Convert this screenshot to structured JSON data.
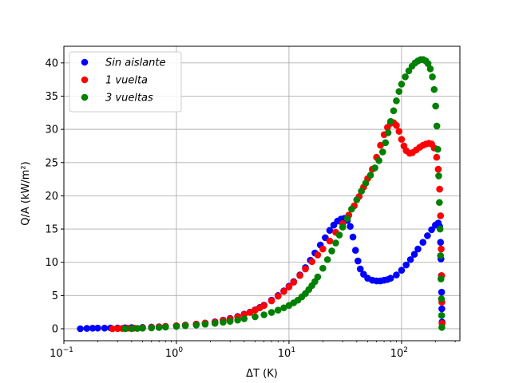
{
  "chart_data": {
    "type": "scatter",
    "title": "",
    "xlabel": "ΔT (K)",
    "ylabel": "Q/A (kW/m²)",
    "xscale": "log",
    "xlim": [
      0.1,
      330
    ],
    "ylim": [
      -1.8,
      42.5
    ],
    "xticks": [
      {
        "value": 0.1,
        "label": "10",
        "exp": "−1"
      },
      {
        "value": 1,
        "label": "10",
        "exp": "0"
      },
      {
        "value": 10,
        "label": "10",
        "exp": "1"
      },
      {
        "value": 100,
        "label": "10",
        "exp": "2"
      }
    ],
    "yticks": [
      0,
      5,
      10,
      15,
      20,
      25,
      30,
      35,
      40
    ],
    "grid": true,
    "legend_position": "top-left",
    "series": [
      {
        "name": "Sin aislante",
        "color": "#0000ff",
        "points": [
          [
            0.14,
            0.0
          ],
          [
            0.16,
            0.05
          ],
          [
            0.18,
            0.08
          ],
          [
            0.2,
            0.1
          ],
          [
            0.23,
            0.1
          ],
          [
            0.26,
            0.12
          ],
          [
            0.3,
            0.12
          ],
          [
            0.35,
            0.15
          ],
          [
            0.4,
            0.18
          ],
          [
            0.5,
            0.2
          ],
          [
            0.6,
            0.25
          ],
          [
            0.7,
            0.3
          ],
          [
            0.8,
            0.35
          ],
          [
            1.0,
            0.45
          ],
          [
            1.2,
            0.55
          ],
          [
            1.5,
            0.7
          ],
          [
            1.8,
            0.85
          ],
          [
            2.2,
            1.05
          ],
          [
            2.6,
            1.3
          ],
          [
            3.0,
            1.55
          ],
          [
            3.5,
            1.85
          ],
          [
            4.0,
            2.2
          ],
          [
            4.5,
            2.5
          ],
          [
            5.0,
            2.85
          ],
          [
            5.5,
            3.2
          ],
          [
            6.0,
            3.55
          ],
          [
            7.0,
            4.3
          ],
          [
            8.0,
            5.0
          ],
          [
            9.0,
            5.7
          ],
          [
            10.0,
            6.4
          ],
          [
            11.0,
            7.1
          ],
          [
            12.5,
            8.1
          ],
          [
            14.0,
            9.2
          ],
          [
            15.5,
            10.3
          ],
          [
            17.0,
            11.4
          ],
          [
            19.0,
            12.6
          ],
          [
            21.0,
            13.7
          ],
          [
            23.0,
            14.8
          ],
          [
            25.0,
            15.6
          ],
          [
            27.0,
            16.2
          ],
          [
            29.0,
            16.5
          ],
          [
            31.0,
            16.6
          ],
          [
            33.0,
            16.3
          ],
          [
            35.0,
            15.4
          ],
          [
            37.0,
            13.8
          ],
          [
            39.0,
            11.8
          ],
          [
            41.0,
            10.2
          ],
          [
            43.0,
            9.0
          ],
          [
            46.0,
            8.2
          ],
          [
            50.0,
            7.6
          ],
          [
            55.0,
            7.3
          ],
          [
            60.0,
            7.2
          ],
          [
            65.0,
            7.2
          ],
          [
            70.0,
            7.3
          ],
          [
            75.0,
            7.4
          ],
          [
            80.0,
            7.6
          ],
          [
            90.0,
            8.1
          ],
          [
            100.0,
            8.8
          ],
          [
            110.0,
            9.6
          ],
          [
            120.0,
            10.4
          ],
          [
            130.0,
            11.2
          ],
          [
            140.0,
            12.0
          ],
          [
            155.0,
            13.0
          ],
          [
            170.0,
            14.0
          ],
          [
            185.0,
            14.9
          ],
          [
            200.0,
            15.6
          ],
          [
            212.0,
            15.9
          ],
          [
            218.0,
            15.4
          ],
          [
            222.0,
            13.0
          ],
          [
            224.0,
            10.5
          ],
          [
            226.0,
            8.0
          ],
          [
            227.0,
            5.5
          ],
          [
            228.0,
            3.0
          ],
          [
            229.0,
            1.0
          ]
        ]
      },
      {
        "name": "1 vuelta",
        "color": "#ff0000",
        "points": [
          [
            0.27,
            0.0
          ],
          [
            0.3,
            0.02
          ],
          [
            0.33,
            0.05
          ],
          [
            0.37,
            0.08
          ],
          [
            0.42,
            0.1
          ],
          [
            0.5,
            0.15
          ],
          [
            0.6,
            0.2
          ],
          [
            0.7,
            0.28
          ],
          [
            0.8,
            0.35
          ],
          [
            1.0,
            0.45
          ],
          [
            1.2,
            0.55
          ],
          [
            1.5,
            0.7
          ],
          [
            1.8,
            0.85
          ],
          [
            2.2,
            1.0
          ],
          [
            2.6,
            1.25
          ],
          [
            3.0,
            1.5
          ],
          [
            3.5,
            1.8
          ],
          [
            4.0,
            2.15
          ],
          [
            4.5,
            2.45
          ],
          [
            5.0,
            2.8
          ],
          [
            5.5,
            3.15
          ],
          [
            6.0,
            3.5
          ],
          [
            7.0,
            4.2
          ],
          [
            8.0,
            4.9
          ],
          [
            9.0,
            5.6
          ],
          [
            10.0,
            6.3
          ],
          [
            11.0,
            7.0
          ],
          [
            12.5,
            8.0
          ],
          [
            14.0,
            9.0
          ],
          [
            16.0,
            10.1
          ],
          [
            18.0,
            11.1
          ],
          [
            20.0,
            12.0
          ],
          [
            23.0,
            13.2
          ],
          [
            26.0,
            14.5
          ],
          [
            30.0,
            15.8
          ],
          [
            34.0,
            17.1
          ],
          [
            38.0,
            18.5
          ],
          [
            42.0,
            19.9
          ],
          [
            46.0,
            21.3
          ],
          [
            50.0,
            22.6
          ],
          [
            55.0,
            24.0
          ],
          [
            60.0,
            25.8
          ],
          [
            65.0,
            27.6
          ],
          [
            70.0,
            29.2
          ],
          [
            75.0,
            30.3
          ],
          [
            80.0,
            30.9
          ],
          [
            85.0,
            31.0
          ],
          [
            90.0,
            30.6
          ],
          [
            95.0,
            29.7
          ],
          [
            100.0,
            28.5
          ],
          [
            105.0,
            27.5
          ],
          [
            110.0,
            26.8
          ],
          [
            118.0,
            26.4
          ],
          [
            125.0,
            26.5
          ],
          [
            135.0,
            26.9
          ],
          [
            145.0,
            27.3
          ],
          [
            155.0,
            27.6
          ],
          [
            165.0,
            27.8
          ],
          [
            175.0,
            27.9
          ],
          [
            185.0,
            27.8
          ],
          [
            195.0,
            27.2
          ],
          [
            205.0,
            25.8
          ],
          [
            212.0,
            24.0
          ],
          [
            218.0,
            21.0
          ],
          [
            222.0,
            17.0
          ],
          [
            225.0,
            12.0
          ],
          [
            227.0,
            8.0
          ],
          [
            228.0,
            4.0
          ],
          [
            229.0,
            0.8
          ]
        ]
      },
      {
        "name": "3 vueltas",
        "color": "#008000",
        "points": [
          [
            0.35,
            0.0
          ],
          [
            0.4,
            0.02
          ],
          [
            0.45,
            0.05
          ],
          [
            0.5,
            0.08
          ],
          [
            0.6,
            0.12
          ],
          [
            0.7,
            0.18
          ],
          [
            0.8,
            0.24
          ],
          [
            1.0,
            0.35
          ],
          [
            1.2,
            0.45
          ],
          [
            1.5,
            0.55
          ],
          [
            1.8,
            0.68
          ],
          [
            2.2,
            0.82
          ],
          [
            2.6,
            0.98
          ],
          [
            3.0,
            1.12
          ],
          [
            3.5,
            1.3
          ],
          [
            4.0,
            1.5
          ],
          [
            5.0,
            1.8
          ],
          [
            6.0,
            2.1
          ],
          [
            7.0,
            2.45
          ],
          [
            8.0,
            2.8
          ],
          [
            9.0,
            3.15
          ],
          [
            10.0,
            3.5
          ],
          [
            11.0,
            3.9
          ],
          [
            12.0,
            4.3
          ],
          [
            13.0,
            4.8
          ],
          [
            14.0,
            5.3
          ],
          [
            15.0,
            5.9
          ],
          [
            16.0,
            6.5
          ],
          [
            17.0,
            7.1
          ],
          [
            18.0,
            7.8
          ],
          [
            20.0,
            9.1
          ],
          [
            22.0,
            10.4
          ],
          [
            24.0,
            11.7
          ],
          [
            26.0,
            12.9
          ],
          [
            28.0,
            14.1
          ],
          [
            30.0,
            15.3
          ],
          [
            33.0,
            16.6
          ],
          [
            36.0,
            18.0
          ],
          [
            40.0,
            19.4
          ],
          [
            44.0,
            20.7
          ],
          [
            48.0,
            21.9
          ],
          [
            53.0,
            23.1
          ],
          [
            58.0,
            24.2
          ],
          [
            63.0,
            25.3
          ],
          [
            68.0,
            26.6
          ],
          [
            72.0,
            28.0
          ],
          [
            76.0,
            29.5
          ],
          [
            80.0,
            31.2
          ],
          [
            85.0,
            32.8
          ],
          [
            90.0,
            34.3
          ],
          [
            95.0,
            35.7
          ],
          [
            100.0,
            36.8
          ],
          [
            108.0,
            37.9
          ],
          [
            116.0,
            38.8
          ],
          [
            124.0,
            39.5
          ],
          [
            132.0,
            40.0
          ],
          [
            140.0,
            40.3
          ],
          [
            148.0,
            40.5
          ],
          [
            156.0,
            40.5
          ],
          [
            164.0,
            40.3
          ],
          [
            172.0,
            39.9
          ],
          [
            180.0,
            39.1
          ],
          [
            188.0,
            37.9
          ],
          [
            195.0,
            36.0
          ],
          [
            201.0,
            33.5
          ],
          [
            206.0,
            30.5
          ],
          [
            210.0,
            27.0
          ],
          [
            214.0,
            23.0
          ],
          [
            217.0,
            19.0
          ],
          [
            220.0,
            15.0
          ],
          [
            222.0,
            11.0
          ],
          [
            224.0,
            7.5
          ],
          [
            226.0,
            4.5
          ],
          [
            227.0,
            2.0
          ],
          [
            228.0,
            0.2
          ]
        ]
      }
    ]
  }
}
